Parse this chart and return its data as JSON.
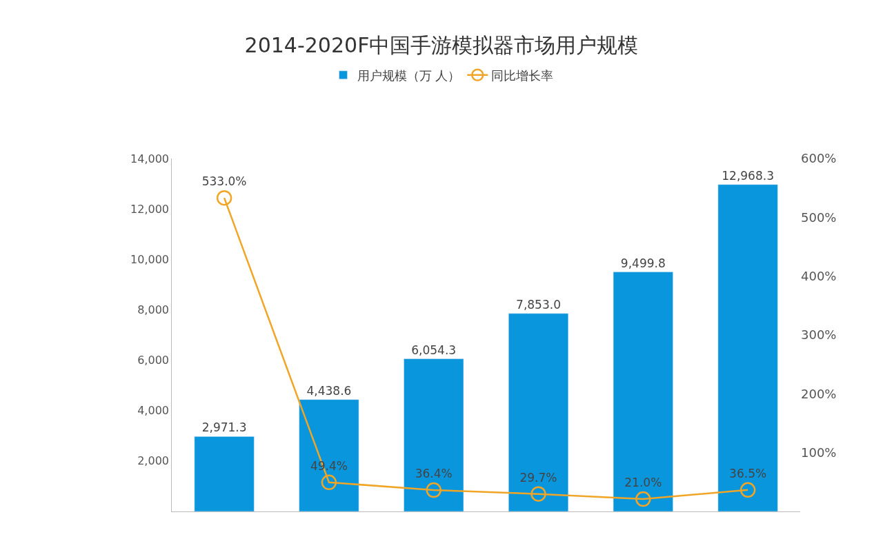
{
  "chart_data": {
    "type": "bar",
    "title": "2014-2020F中国手游模拟器市场用户规模",
    "categories": [
      null,
      null,
      null,
      null,
      null,
      null
    ],
    "series": [
      {
        "name": "用户规模（万 人）",
        "color": "#0a96dc",
        "values": [
          2971.3,
          4438.6,
          6054.3,
          7853.0,
          9499.8,
          12968.3
        ],
        "value_labels": [
          "2,971.3",
          "4,438.6",
          "6,054.3",
          "7,853.0",
          "9,499.8",
          "12,968.3"
        ]
      },
      {
        "name": "同比增长率",
        "type": "line",
        "axis": "y2",
        "color": "#f0a526",
        "marker": "circle",
        "values": [
          533.0,
          49.4,
          36.4,
          29.7,
          21.0,
          36.5
        ],
        "value_labels": [
          "533.0%",
          "49.4%",
          "36.4%",
          "29.7%",
          "21.0%",
          "36.5%"
        ]
      }
    ],
    "ylim": [
      0,
      14000
    ],
    "yticks": [
      {
        "value": 2000,
        "label": "2,000"
      },
      {
        "value": 4000,
        "label": "4,000"
      },
      {
        "value": 6000,
        "label": "6,000"
      },
      {
        "value": 8000,
        "label": "8,000"
      },
      {
        "value": 10000,
        "label": "10,000"
      },
      {
        "value": 12000,
        "label": "12,000"
      },
      {
        "value": 14000,
        "label": "14,000"
      }
    ],
    "y2lim": [
      0,
      600
    ],
    "y2ticks": [
      {
        "value": 100,
        "label": "100%"
      },
      {
        "value": 200,
        "label": "200%"
      },
      {
        "value": 300,
        "label": "300%"
      },
      {
        "value": 400,
        "label": "400%"
      },
      {
        "value": 500,
        "label": "500%"
      },
      {
        "value": 600,
        "label": "600%"
      }
    ],
    "legend": "top"
  }
}
